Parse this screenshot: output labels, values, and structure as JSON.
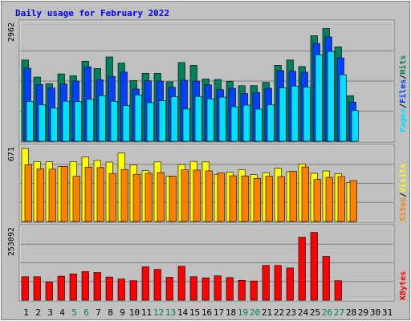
{
  "chart_data": [
    {
      "type": "bar",
      "panel": "hits-files-pages",
      "title": "Daily usage for February 2022",
      "y_max_label": "2962",
      "ylim": [
        0,
        2962
      ],
      "grid": true,
      "categories": [
        "1",
        "2",
        "3",
        "4",
        "5",
        "6",
        "7",
        "8",
        "9",
        "10",
        "11",
        "12",
        "13",
        "14",
        "15",
        "16",
        "17",
        "18",
        "19",
        "20",
        "21",
        "22",
        "23",
        "24",
        "25",
        "26",
        "27",
        "28",
        "29",
        "30",
        "31"
      ],
      "series": [
        {
          "name": "Hits",
          "color": "#00805C",
          "values": [
            2053,
            1622,
            1455,
            1703,
            1655,
            2023,
            1840,
            2132,
            1976,
            1535,
            1718,
            1717,
            1502,
            1989,
            1918,
            1574,
            1562,
            1514,
            1405,
            1406,
            1489,
            1921,
            2053,
            1888,
            2668,
            2850,
            2385,
            1151,
            null,
            null,
            null
          ]
        },
        {
          "name": "Files",
          "color": "#0040FF",
          "values": [
            1845,
            1434,
            1348,
            1448,
            1521,
            1881,
            1555,
            1637,
            1747,
            1319,
            1529,
            1520,
            1366,
            1541,
            1520,
            1426,
            1305,
            1338,
            1206,
            1233,
            1338,
            1787,
            1769,
            1746,
            2472,
            2637,
            2108,
            989,
            null,
            null,
            null
          ]
        },
        {
          "name": "Pages",
          "color": "#00E0FF",
          "values": [
            1007,
            922,
            836,
            1012,
            1003,
            1061,
            1153,
            1010,
            902,
            1171,
            975,
            1022,
            1126,
            814,
            1132,
            1072,
            1115,
            868,
            913,
            811,
            923,
            1347,
            1395,
            1368,
            2188,
            2267,
            1682,
            776,
            null,
            null,
            null
          ]
        }
      ]
    },
    {
      "type": "bar",
      "panel": "visits-sites",
      "y_max_label": "671",
      "ylim": [
        0,
        671
      ],
      "grid": true,
      "categories": [
        "1",
        "2",
        "3",
        "4",
        "5",
        "6",
        "7",
        "8",
        "9",
        "10",
        "11",
        "12",
        "13",
        "14",
        "15",
        "16",
        "17",
        "18",
        "19",
        "20",
        "21",
        "22",
        "23",
        "24",
        "25",
        "26",
        "27",
        "28",
        "29",
        "30",
        "31"
      ],
      "series": [
        {
          "name": "Visits",
          "color": "#FFFF00",
          "values": [
            671,
            550,
            548,
            504,
            550,
            593,
            560,
            546,
            628,
            520,
            467,
            547,
            417,
            524,
            552,
            547,
            430,
            453,
            476,
            430,
            449,
            489,
            458,
            529,
            443,
            464,
            439,
            357,
            null,
            null,
            null
          ]
        },
        {
          "name": "Sites",
          "color": "#FF8000",
          "values": [
            522,
            484,
            481,
            506,
            416,
            500,
            495,
            441,
            478,
            434,
            443,
            449,
            416,
            475,
            472,
            465,
            445,
            420,
            419,
            396,
            416,
            412,
            460,
            501,
            386,
            406,
            413,
            376,
            null,
            null,
            null
          ]
        }
      ]
    },
    {
      "type": "bar",
      "panel": "kbytes",
      "y_max_label": "253092",
      "ylim": [
        0,
        253092
      ],
      "grid": true,
      "categories": [
        "1",
        "2",
        "3",
        "4",
        "5",
        "6",
        "7",
        "8",
        "9",
        "10",
        "11",
        "12",
        "13",
        "14",
        "15",
        "16",
        "17",
        "18",
        "19",
        "20",
        "21",
        "22",
        "23",
        "24",
        "25",
        "26",
        "27",
        "28",
        "29",
        "30",
        "31"
      ],
      "series": [
        {
          "name": "KBytes",
          "color": "#FF0000",
          "values": [
            83000,
            83000,
            64000,
            85000,
            93000,
            101000,
            98000,
            82000,
            75000,
            69000,
            118000,
            109000,
            81000,
            120000,
            83000,
            79000,
            86000,
            80000,
            70000,
            68000,
            123000,
            123000,
            114000,
            223000,
            240000,
            155000,
            69000,
            null,
            null,
            null,
            null
          ]
        }
      ]
    }
  ],
  "legend": {
    "top_right": [
      {
        "text": "Pages",
        "color": "#00E0FF"
      },
      {
        "text": "/",
        "color": "#000000"
      },
      {
        "text": "Files",
        "color": "#0040FF"
      },
      {
        "text": "/",
        "color": "#000000"
      },
      {
        "text": "Hits",
        "color": "#00805C"
      }
    ],
    "middle_right": [
      {
        "text": "Sites",
        "color": "#FF8000"
      },
      {
        "text": "/",
        "color": "#000000"
      },
      {
        "text": "Visits",
        "color": "#FFFF00"
      }
    ],
    "bottom_right": [
      {
        "text": "KBytes",
        "color": "#FF0000"
      }
    ]
  },
  "weekend_days": [
    5,
    6,
    12,
    13,
    19,
    20,
    26,
    27
  ],
  "colors": {
    "background": "#C0C0C0",
    "panel_bg": "#C0C0C0",
    "grid": "#808080",
    "title": "#0000FF",
    "label": "#000000",
    "weekend_label": "#00805C",
    "border_light": "#FFFFFF",
    "border_dark": "#808080"
  }
}
